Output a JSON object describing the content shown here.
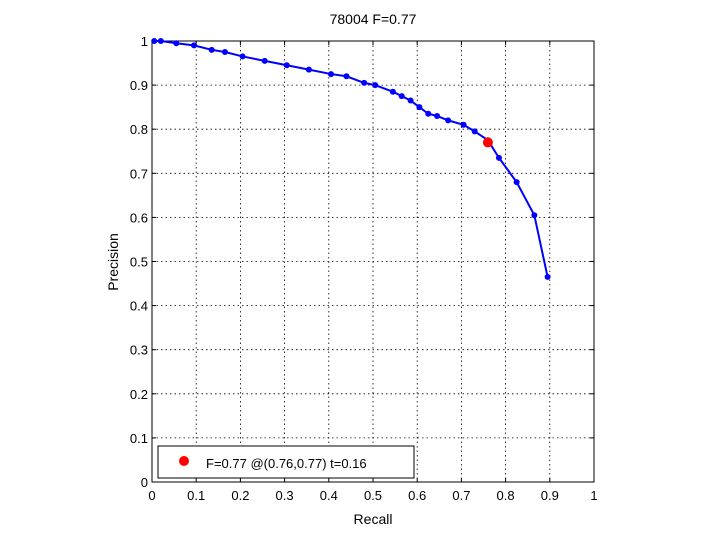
{
  "chart_data": {
    "type": "line",
    "title": "78004 F=0.77",
    "xlabel": "Recall",
    "ylabel": "Precision",
    "xlim": [
      0,
      1
    ],
    "ylim": [
      0,
      1
    ],
    "x_ticks": [
      0,
      0.1,
      0.2,
      0.3,
      0.4,
      0.5,
      0.6,
      0.7,
      0.8,
      0.9,
      1
    ],
    "x_tick_labels": [
      "0",
      "0.1",
      "0.2",
      "0.3",
      "0.4",
      "0.5",
      "0.6",
      "0.7",
      "0.8",
      "0.9",
      "1"
    ],
    "y_ticks": [
      0,
      0.1,
      0.2,
      0.3,
      0.4,
      0.5,
      0.6,
      0.7,
      0.8,
      0.9,
      1
    ],
    "y_tick_labels": [
      "0",
      "0.1",
      "0.2",
      "0.3",
      "0.4",
      "0.5",
      "0.6",
      "0.7",
      "0.8",
      "0.9",
      "1"
    ],
    "grid": true,
    "legend_position": "bottom-left",
    "series": [
      {
        "color": "#0000ff",
        "x": [
          0.005,
          0.02,
          0.055,
          0.095,
          0.135,
          0.165,
          0.205,
          0.255,
          0.305,
          0.355,
          0.405,
          0.44,
          0.48,
          0.505,
          0.545,
          0.565,
          0.585,
          0.605,
          0.625,
          0.645,
          0.67,
          0.705,
          0.73,
          0.76,
          0.785,
          0.825,
          0.865,
          0.895
        ],
        "y": [
          1.0,
          1.0,
          0.995,
          0.99,
          0.98,
          0.975,
          0.965,
          0.955,
          0.945,
          0.935,
          0.925,
          0.92,
          0.905,
          0.9,
          0.885,
          0.875,
          0.865,
          0.85,
          0.835,
          0.83,
          0.82,
          0.81,
          0.795,
          0.775,
          0.735,
          0.68,
          0.605,
          0.465
        ]
      }
    ],
    "highlight_point": {
      "x": 0.76,
      "y": 0.77,
      "color": "#ff0000",
      "label": "F=0.77 @(0.76,0.77) t=0.16"
    }
  }
}
